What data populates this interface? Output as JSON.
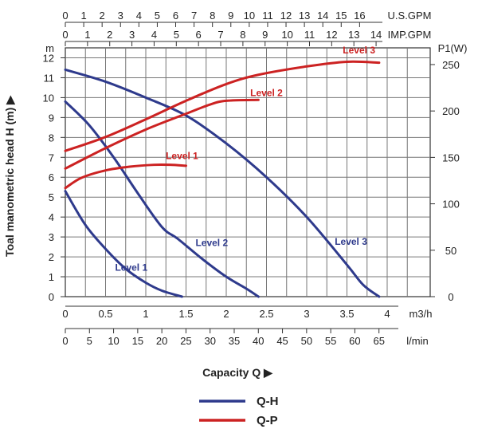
{
  "chart_data": {
    "type": "line",
    "top_axes": [
      {
        "unit": "U.S.GPM",
        "ticks": [
          "0",
          "1",
          "2",
          "3",
          "4",
          "5",
          "6",
          "7",
          "8",
          "9",
          "10",
          "11",
          "12",
          "13",
          "14",
          "15",
          "16"
        ],
        "max": 17.5
      },
      {
        "unit": "IMP.GPM",
        "ticks": [
          "0",
          "1",
          "2",
          "3",
          "4",
          "5",
          "6",
          "7",
          "8",
          "9",
          "10",
          "11",
          "12",
          "13",
          "14"
        ],
        "max": 14.5
      }
    ],
    "x_axis_m3h": {
      "unit": "m3/h",
      "ticks": [
        "0",
        "0.5",
        "1",
        "1.5",
        "2",
        "2.5",
        "3",
        "3.5",
        "4"
      ],
      "range": [
        0,
        4
      ]
    },
    "x_axis_lmin": {
      "unit": "l/min",
      "ticks": [
        "0",
        "5",
        "10",
        "15",
        "20",
        "25",
        "30",
        "35",
        "40",
        "45",
        "50",
        "55",
        "60",
        "65"
      ],
      "range": [
        0,
        66.7
      ]
    },
    "y_left": {
      "unit": "m",
      "label": "Toal manometric head H (m)",
      "ticks": [
        "0",
        "1",
        "2",
        "3",
        "4",
        "5",
        "6",
        "7",
        "8",
        "9",
        "10",
        "11",
        "12"
      ],
      "range": [
        0,
        12.5
      ]
    },
    "y_right": {
      "unit": "P1(W)",
      "ticks": [
        "0",
        "50",
        "100",
        "150",
        "200",
        "250"
      ],
      "range": [
        0,
        268
      ]
    },
    "xlabel": "Capacity Q",
    "series": [
      {
        "name": "Level 1",
        "kind": "Q-H",
        "label": "Level 1",
        "points": [
          [
            0,
            5.3
          ],
          [
            0.25,
            3.6
          ],
          [
            0.5,
            2.4
          ],
          [
            0.75,
            1.4
          ],
          [
            1.0,
            0.7
          ],
          [
            1.2,
            0.3
          ],
          [
            1.45,
            0.0
          ]
        ]
      },
      {
        "name": "Level 2",
        "kind": "Q-H",
        "label": "Level 2",
        "points": [
          [
            0,
            9.8
          ],
          [
            0.3,
            8.6
          ],
          [
            0.6,
            7.0
          ],
          [
            0.9,
            5.2
          ],
          [
            1.2,
            3.5
          ],
          [
            1.4,
            2.9
          ],
          [
            1.7,
            1.9
          ],
          [
            2.0,
            1.0
          ],
          [
            2.25,
            0.4
          ],
          [
            2.4,
            0.0
          ]
        ]
      },
      {
        "name": "Level 3",
        "kind": "Q-H",
        "label": "Level 3",
        "points": [
          [
            0,
            11.4
          ],
          [
            0.5,
            10.8
          ],
          [
            1.0,
            10.0
          ],
          [
            1.5,
            9.1
          ],
          [
            2.0,
            7.7
          ],
          [
            2.5,
            6.0
          ],
          [
            3.0,
            4.0
          ],
          [
            3.5,
            1.6
          ],
          [
            3.7,
            0.6
          ],
          [
            3.9,
            0.0
          ]
        ]
      },
      {
        "name": "Level 1",
        "kind": "Q-P",
        "label": "Level 1",
        "points": [
          [
            0,
            117
          ],
          [
            0.2,
            128
          ],
          [
            0.5,
            136
          ],
          [
            0.8,
            140
          ],
          [
            1.1,
            142
          ],
          [
            1.3,
            142
          ],
          [
            1.5,
            141
          ]
        ]
      },
      {
        "name": "Level 2",
        "kind": "Q-P",
        "label": "Level 2",
        "points": [
          [
            0,
            138
          ],
          [
            0.5,
            160
          ],
          [
            1.0,
            180
          ],
          [
            1.5,
            197
          ],
          [
            1.8,
            207
          ],
          [
            2.0,
            211
          ],
          [
            2.4,
            212
          ]
        ]
      },
      {
        "name": "Level 3",
        "kind": "Q-P",
        "label": "Level 3",
        "points": [
          [
            0,
            157
          ],
          [
            0.5,
            172
          ],
          [
            1.0,
            191
          ],
          [
            1.5,
            211
          ],
          [
            2.0,
            229
          ],
          [
            2.4,
            239
          ],
          [
            3.0,
            248
          ],
          [
            3.5,
            253
          ],
          [
            3.9,
            252
          ]
        ]
      }
    ],
    "legend": [
      {
        "label": "Q-H",
        "color": "#2e3a8c"
      },
      {
        "label": "Q-P",
        "color": "#cc2222"
      }
    ],
    "colors": {
      "qh": "#2e3a8c",
      "qp": "#cc2222",
      "level_label_qh": "#2e3a8c",
      "level_label_qp": "#cc2222"
    }
  }
}
